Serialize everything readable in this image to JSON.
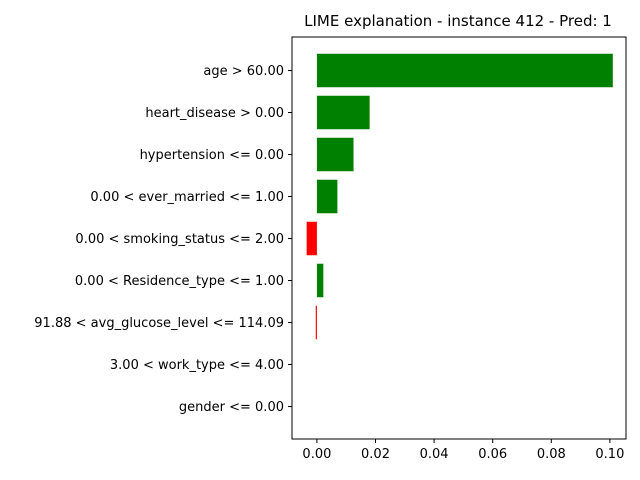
{
  "chart_data": {
    "type": "bar",
    "orientation": "horizontal",
    "title": "LIME explanation - instance 412 - Pred: 1",
    "xlabel": "",
    "ylabel": "",
    "xlim": [
      -0.0085,
      0.1055
    ],
    "xticks": [
      0.0,
      0.02,
      0.04,
      0.06,
      0.08,
      0.1
    ],
    "xtick_labels": [
      "0.00",
      "0.02",
      "0.04",
      "0.06",
      "0.08",
      "0.10"
    ],
    "grid": false,
    "legend": "none",
    "categories": [
      "age > 60.00",
      "heart_disease > 0.00",
      "hypertension <= 0.00",
      "0.00 < ever_married <= 1.00",
      "0.00 < smoking_status <= 2.00",
      "0.00 < Residence_type <= 1.00",
      "91.88 < avg_glucose_level <= 114.09",
      "3.00 < work_type <= 4.00",
      "gender <= 0.00"
    ],
    "values": [
      0.101,
      0.018,
      0.0125,
      0.007,
      -0.0035,
      0.0022,
      -0.0004,
      0.0,
      0.0
    ],
    "colors": {
      "positive": "#008000",
      "negative": "#ff0000"
    }
  }
}
